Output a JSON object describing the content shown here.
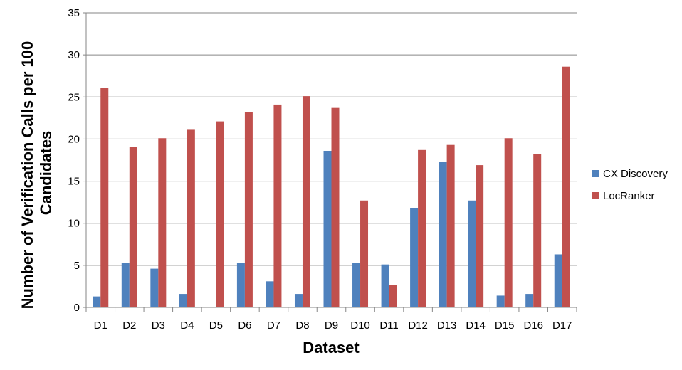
{
  "chart_data": {
    "type": "bar",
    "title": "",
    "xlabel": "Dataset",
    "ylabel": "Number of Verification Calls per 100 Candidates",
    "ylabel_lines": [
      "Number of Verification Calls per 100",
      "Candidates"
    ],
    "categories": [
      "D1",
      "D2",
      "D3",
      "D4",
      "D5",
      "D6",
      "D7",
      "D8",
      "D9",
      "D10",
      "D11",
      "D12",
      "D13",
      "D14",
      "D15",
      "D16",
      "D17"
    ],
    "series": [
      {
        "name": "CX Discovery",
        "color": "#4F81BD",
        "values": [
          1.3,
          5.3,
          4.6,
          1.6,
          0,
          5.3,
          3.1,
          1.6,
          18.6,
          5.3,
          5.1,
          11.8,
          17.3,
          12.7,
          1.4,
          1.6,
          6.3
        ]
      },
      {
        "name": "LocRanker",
        "color": "#C0504D",
        "values": [
          26.1,
          19.1,
          20.1,
          21.1,
          22.1,
          23.2,
          24.1,
          25.1,
          23.7,
          12.7,
          2.7,
          18.7,
          19.3,
          16.9,
          20.1,
          18.2,
          28.6
        ]
      }
    ],
    "ylim": [
      0,
      35
    ],
    "yticks": [
      0,
      5,
      10,
      15,
      20,
      25,
      30,
      35
    ],
    "grid": true,
    "legend_position": "right"
  }
}
